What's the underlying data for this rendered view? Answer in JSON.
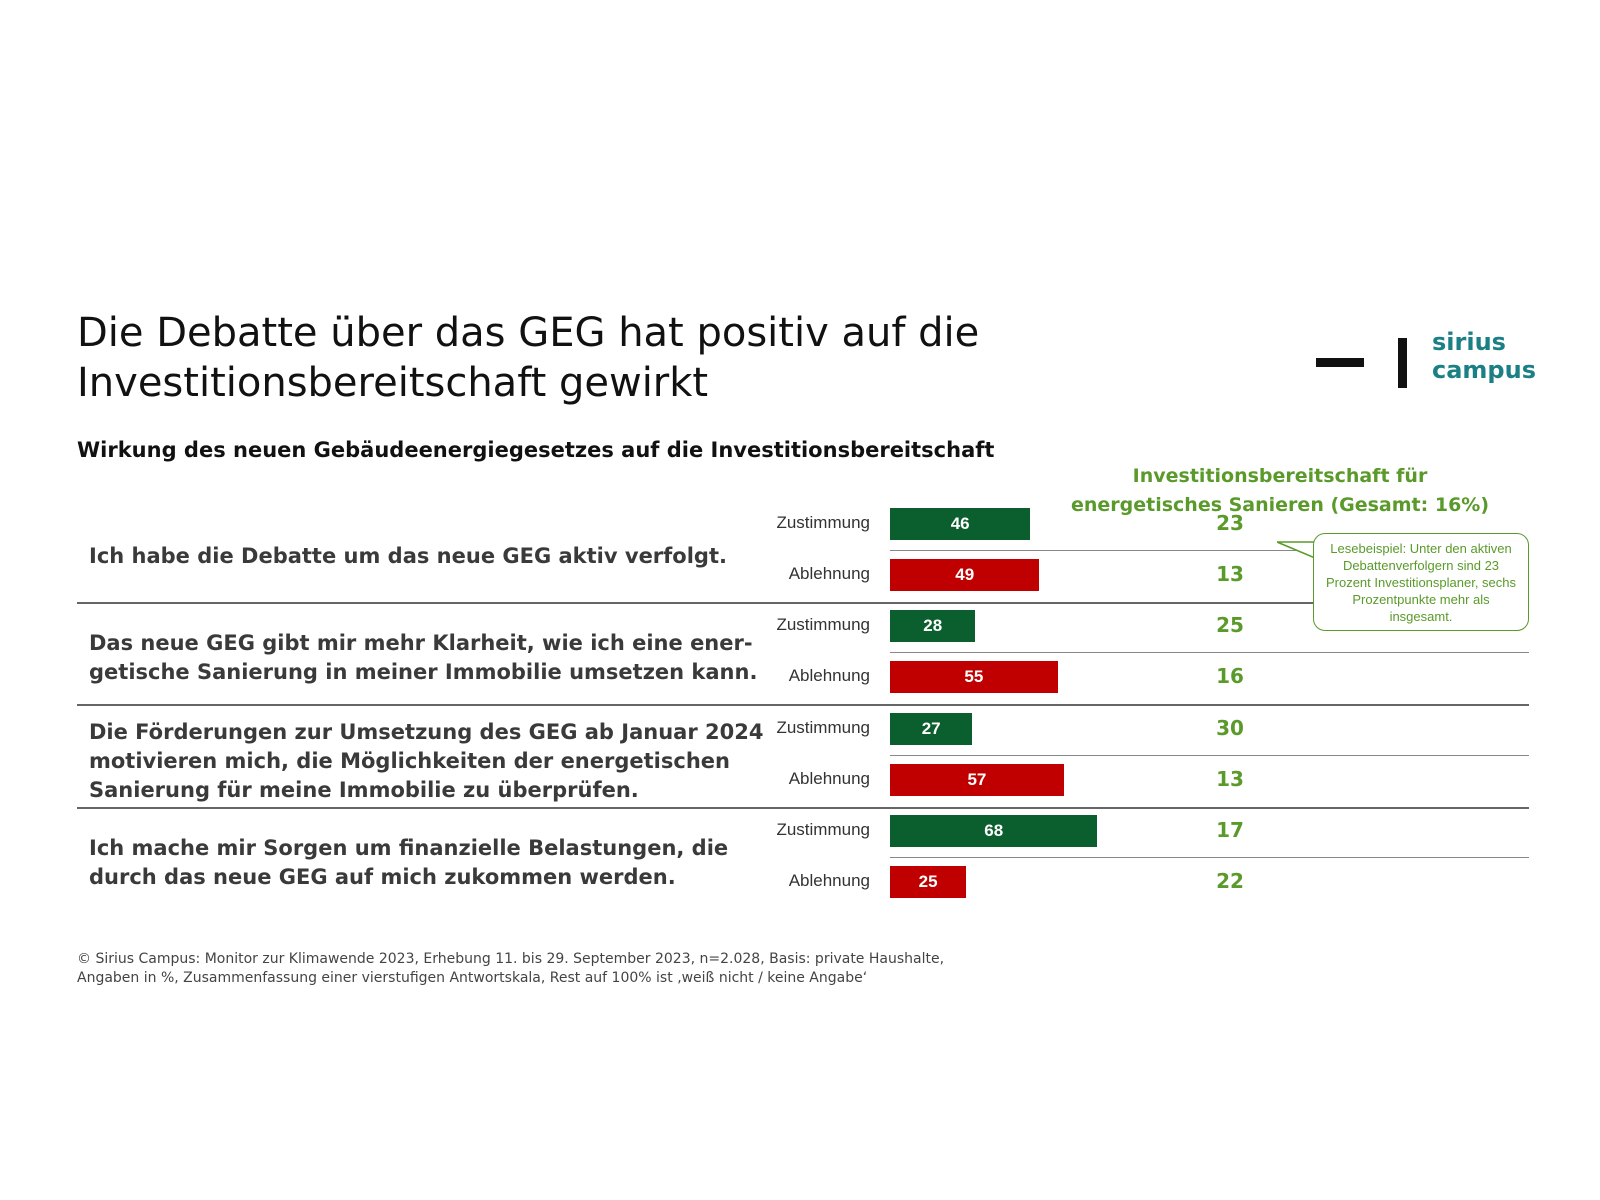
{
  "title": "Die Debatte über das GEG hat positiv auf die Investitionsbereitschaft gewirkt",
  "subtitle": "Wirkung des neuen Gebäudeenergiegesetzes auf die Investitionsbereitschaft",
  "logo": {
    "line1": "sirius",
    "line2": "campus"
  },
  "invest_header": {
    "line1": "Investitionsbereitschaft für",
    "line2": "energetisches Sanieren (Gesamt: 16%)"
  },
  "callout": "Lesebeispiel: Unter den aktiven Debattenverfolgern sind 23 Prozent Investitionsplaner, sechs Prozentpunkte mehr als insgesamt.",
  "footnote": {
    "line1": "© Sirius Campus: Monitor zur Klimawende 2023, Erhebung 11. bis 29. September 2023, n=2.028, Basis: private Haushalte,",
    "line2": "Angaben in %, Zusammenfassung einer vierstufigen Antwortskala, Rest auf 100% ist ‚weiß nicht / keine Angabe‘"
  },
  "colors": {
    "approve": "#0b5e2e",
    "reject": "#c00000",
    "invest": "#5a9a2a"
  },
  "chart_data": {
    "type": "bar",
    "orientation": "horizontal",
    "categories": [
      "Ich habe die Debatte um das neue GEG aktiv verfolgt.",
      "Das neue GEG gibt mir mehr Klarheit, wie ich eine ener-getische Sanierung in meiner Immobilie umsetzen kann.",
      "Die Förderungen zur Umsetzung des GEG ab Januar 2024 motivieren mich, die Möglichkeiten der energetischen Sanierung für meine Immobilie zu überprüfen.",
      "Ich mache mir Sorgen um finanzielle Belastungen, die durch das neue GEG auf mich zukommen werden."
    ],
    "series": [
      {
        "name": "Zustimmung",
        "values": [
          46,
          28,
          27,
          68
        ],
        "invest": [
          23,
          25,
          30,
          17
        ]
      },
      {
        "name": "Ablehnung",
        "values": [
          49,
          55,
          57,
          25
        ],
        "invest": [
          13,
          16,
          13,
          22
        ]
      }
    ],
    "statements": [
      {
        "lines": [
          "Ich habe die Debatte um das neue GEG aktiv verfolgt."
        ]
      },
      {
        "lines": [
          "Das neue GEG gibt mir mehr Klarheit, wie ich eine ener-",
          "getische Sanierung in meiner Immobilie umsetzen kann."
        ]
      },
      {
        "lines": [
          "Die Förderungen zur Umsetzung des GEG ab Januar 2024",
          "motivieren mich, die Möglichkeiten der energetischen",
          "Sanierung für meine Immobilie zu überprüfen."
        ]
      },
      {
        "lines": [
          "Ich mache mir Sorgen um finanzielle Belastungen, die",
          "durch das neue GEG auf mich zukommen werden."
        ]
      }
    ],
    "xlim": [
      0,
      100
    ]
  }
}
